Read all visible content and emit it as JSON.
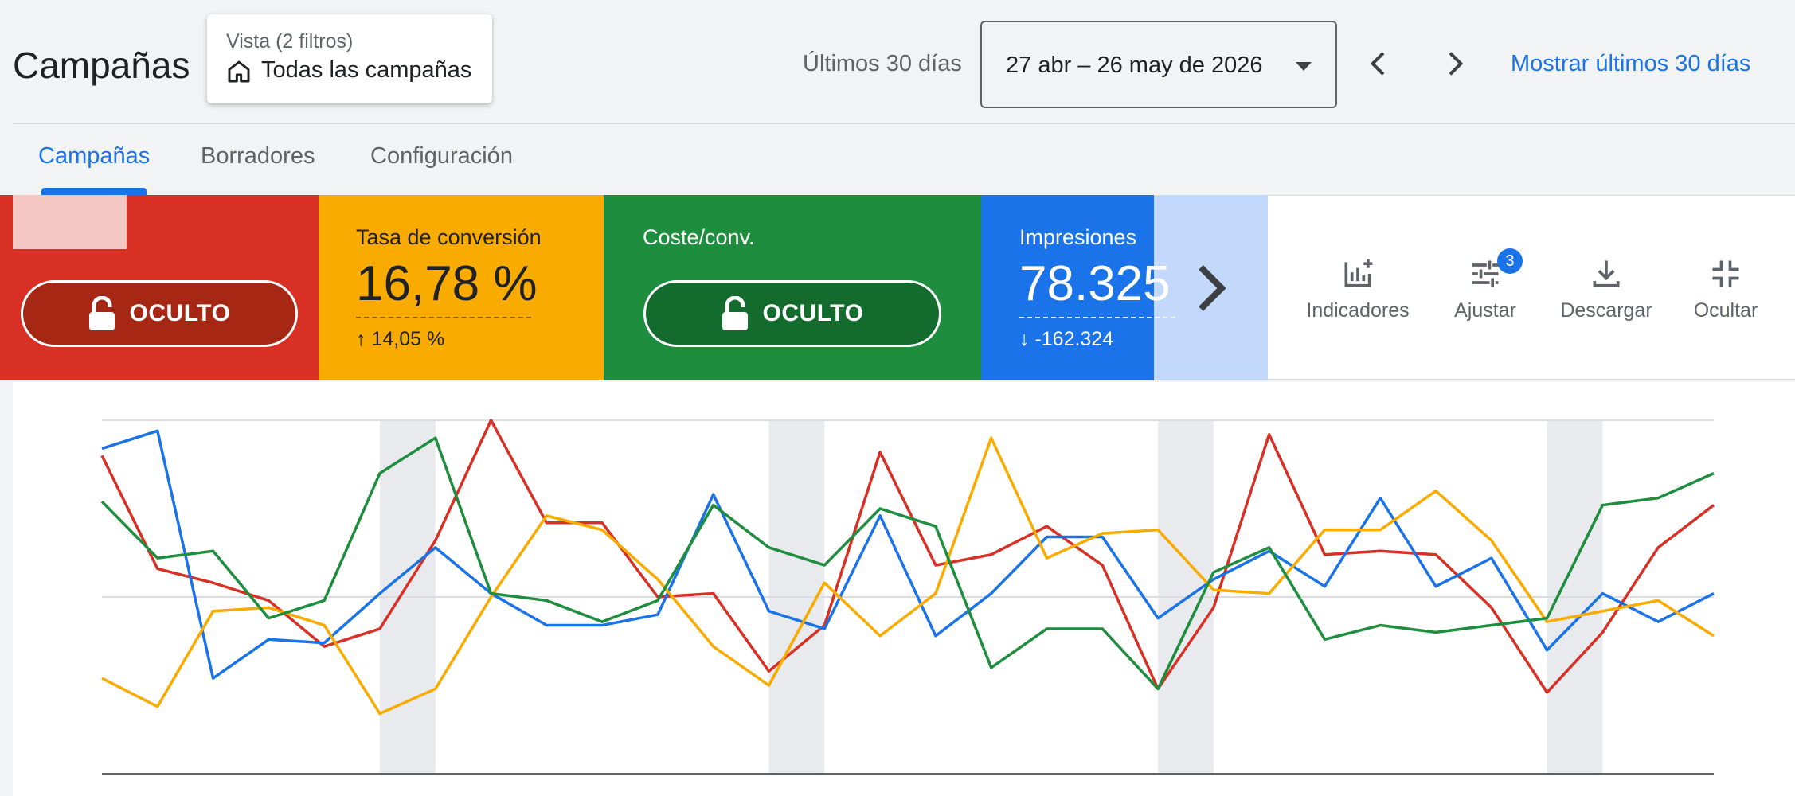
{
  "header": {
    "title": "Campañas",
    "view": {
      "label": "Vista (2 filtros)",
      "value": "Todas las campañas",
      "icon": "home-icon"
    },
    "period_label": "Últimos 30 días",
    "date_range": "27 abr – 26 may de 2026",
    "show_last_link": "Mostrar últimos 30 días"
  },
  "tabs": [
    {
      "label": "Campañas",
      "active": true
    },
    {
      "label": "Borradores",
      "active": false
    },
    {
      "label": "Configuración",
      "active": false
    }
  ],
  "scorecards": {
    "red": {
      "color": "#d93025",
      "hidden_label": "OCULTO"
    },
    "conversion": {
      "label": "Tasa de conversión",
      "value": "16,78 %",
      "delta": "14,05 %",
      "color": "#f9ab00"
    },
    "cost": {
      "label": "Coste/conv.",
      "hidden_label": "OCULTO",
      "color": "#1e8e3e"
    },
    "impressions": {
      "label": "Impresiones",
      "value": "78.325",
      "delta": "-162.324",
      "color": "#1a73e8"
    }
  },
  "toolbar": {
    "indicators": "Indicadores",
    "adjust": "Ajustar",
    "adjust_badge": "3",
    "download": "Descargar",
    "hide": "Ocultar"
  },
  "chart_data": {
    "type": "line",
    "x": [
      1,
      2,
      3,
      4,
      5,
      6,
      7,
      8,
      9,
      10,
      11,
      12,
      13,
      14,
      15,
      16,
      17,
      18,
      19,
      20,
      21,
      22,
      23,
      24,
      25,
      26,
      27,
      28,
      29,
      30
    ],
    "ylim": [
      0,
      100
    ],
    "grid": true,
    "weekend_bands": [
      [
        6,
        7
      ],
      [
        13,
        14
      ],
      [
        20,
        21
      ],
      [
        27,
        28
      ]
    ],
    "series": [
      {
        "color": "#d93025",
        "values": [
          90,
          58,
          54,
          49,
          36,
          41,
          66,
          100,
          71,
          71,
          50,
          51,
          29,
          42,
          91,
          59,
          62,
          70,
          59,
          24,
          47,
          96,
          62,
          63,
          62,
          47,
          23,
          40,
          64,
          76
        ]
      },
      {
        "color": "#1a73e8",
        "values": [
          92,
          97,
          27,
          38,
          37,
          51,
          64,
          51,
          42,
          42,
          45,
          79,
          46,
          41,
          73,
          39,
          51,
          67,
          67,
          44,
          55,
          63,
          53,
          78,
          53,
          61,
          35,
          51,
          43,
          51
        ]
      },
      {
        "color": "#f9ab00",
        "values": [
          27,
          19,
          46,
          47,
          42,
          17,
          24,
          50,
          73,
          69,
          55,
          36,
          25,
          54,
          39,
          51,
          95,
          61,
          68,
          69,
          52,
          51,
          69,
          69,
          80,
          66,
          43,
          46,
          49,
          39
        ]
      },
      {
        "color": "#1e8e3e",
        "values": [
          77,
          61,
          63,
          44,
          49,
          85,
          95,
          51,
          49,
          43,
          49,
          76,
          64,
          59,
          75,
          70,
          30,
          41,
          41,
          24,
          57,
          64,
          38,
          42,
          40,
          42,
          44,
          76,
          78,
          85
        ]
      }
    ]
  }
}
